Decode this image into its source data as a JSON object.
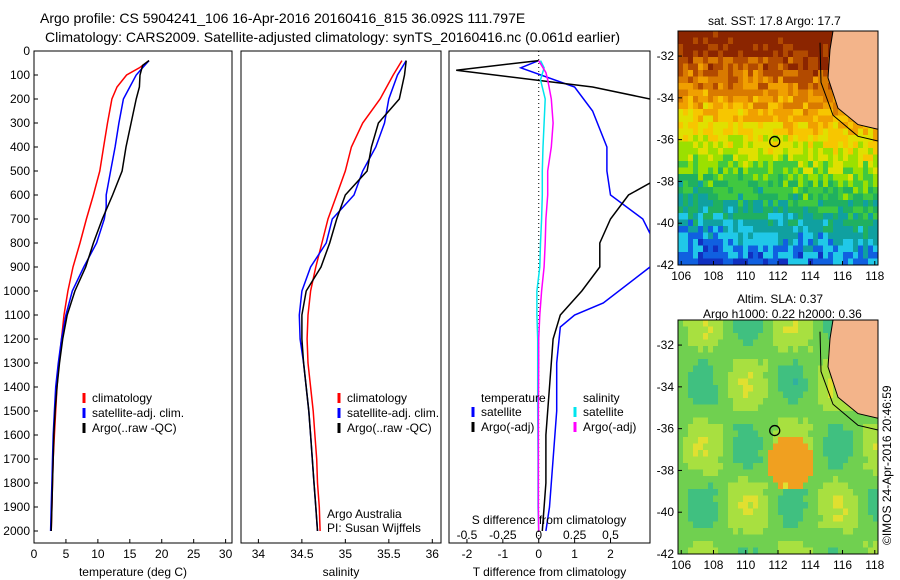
{
  "header": {
    "title_line1": "Argo profile: CS 5904241_106 16-Apr-2016 20160416_815 36.092S 111.797E",
    "title_line2": "Climatology: CARS2009. Satellite-adjusted climatology: synTS_20160416.nc (0.061d earlier)"
  },
  "colors": {
    "climatology": "#ff0000",
    "satellite": "#0000ff",
    "argo": "#000000",
    "satellite_salinity": "#00e5ee",
    "argo_salinity": "#ff00ff"
  },
  "chart_data": [
    {
      "type": "line",
      "id": "temperature",
      "xlabel": "temperature (deg C)",
      "ylabel": "",
      "xlim": [
        0,
        31
      ],
      "ylim": [
        2050,
        0
      ],
      "xticks": [
        "0",
        "5",
        "10",
        "15",
        "20",
        "25",
        "30"
      ],
      "yticks": [
        "0",
        "100",
        "200",
        "300",
        "400",
        "500",
        "600",
        "700",
        "800",
        "900",
        "1000",
        "1100",
        "1200",
        "1300",
        "1400",
        "1500",
        "1600",
        "1700",
        "1800",
        "1900",
        "2000"
      ],
      "legend": [
        "climatology",
        "satellite-adj. clim.",
        "Argo(..raw -QC)"
      ],
      "legend_position": "lower-center",
      "series": [
        {
          "name": "climatology",
          "color": "#ff0000",
          "points": [
            [
              18,
              40
            ],
            [
              16.5,
              70
            ],
            [
              14.5,
              100
            ],
            [
              13,
              150
            ],
            [
              12.2,
              200
            ],
            [
              11.5,
              300
            ],
            [
              10.9,
              400
            ],
            [
              10.3,
              500
            ],
            [
              9.3,
              600
            ],
            [
              8.2,
              700
            ],
            [
              7.2,
              800
            ],
            [
              6.1,
              900
            ],
            [
              5.3,
              1000
            ],
            [
              4.7,
              1100
            ],
            [
              4.3,
              1200
            ],
            [
              3.9,
              1300
            ],
            [
              3.6,
              1400
            ],
            [
              3.4,
              1500
            ],
            [
              3.2,
              1600
            ],
            [
              3.0,
              1700
            ],
            [
              2.9,
              1800
            ],
            [
              2.8,
              1900
            ],
            [
              2.7,
              2000
            ]
          ]
        },
        {
          "name": "satellite-adj. clim.",
          "color": "#0000ff",
          "points": [
            [
              18,
              40
            ],
            [
              17,
              70
            ],
            [
              16,
              100
            ],
            [
              15,
              150
            ],
            [
              14,
              200
            ],
            [
              13.3,
              300
            ],
            [
              12.7,
              400
            ],
            [
              12.0,
              500
            ],
            [
              11.3,
              600
            ],
            [
              11.3,
              650
            ],
            [
              11.0,
              700
            ],
            [
              9.8,
              800
            ],
            [
              7.8,
              900
            ],
            [
              6.0,
              1000
            ],
            [
              5.0,
              1100
            ],
            [
              4.3,
              1200
            ],
            [
              3.8,
              1300
            ],
            [
              3.4,
              1400
            ],
            [
              3.2,
              1500
            ],
            [
              3.0,
              1600
            ],
            [
              2.9,
              1700
            ],
            [
              2.8,
              1800
            ],
            [
              2.7,
              1900
            ],
            [
              2.6,
              2000
            ]
          ]
        },
        {
          "name": "Argo(..raw -QC)",
          "color": "#000000",
          "points": [
            [
              18,
              40
            ],
            [
              17,
              60
            ],
            [
              16.6,
              100
            ],
            [
              16.5,
              150
            ],
            [
              16.0,
              200
            ],
            [
              15.2,
              300
            ],
            [
              14.4,
              400
            ],
            [
              13.8,
              500
            ],
            [
              12.3,
              600
            ],
            [
              10.7,
              700
            ],
            [
              9.3,
              800
            ],
            [
              8.1,
              900
            ],
            [
              6.4,
              1000
            ],
            [
              5.2,
              1100
            ],
            [
              4.5,
              1200
            ],
            [
              4.0,
              1300
            ],
            [
              3.6,
              1400
            ],
            [
              3.3,
              1500
            ],
            [
              3.1,
              1600
            ],
            [
              3.0,
              1700
            ],
            [
              2.9,
              1800
            ],
            [
              2.8,
              1900
            ],
            [
              2.7,
              2000
            ]
          ]
        }
      ]
    },
    {
      "type": "line",
      "id": "salinity",
      "xlabel": "salinity",
      "ylabel": "",
      "xlim": [
        33.8,
        36.1
      ],
      "ylim": [
        2050,
        0
      ],
      "xticks": [
        "34",
        "34.5",
        "35",
        "35.5",
        "36"
      ],
      "legend": [
        "climatology",
        "satellite-adj. clim.",
        "Argo(..raw -QC)"
      ],
      "legend_position": "lower-right",
      "annotation": [
        "Argo Australia",
        "PI: Susan Wijffels"
      ],
      "series": [
        {
          "name": "climatology",
          "color": "#ff0000",
          "points": [
            [
              35.65,
              40
            ],
            [
              35.55,
              100
            ],
            [
              35.4,
              200
            ],
            [
              35.2,
              300
            ],
            [
              35.07,
              400
            ],
            [
              35.0,
              500
            ],
            [
              34.9,
              600
            ],
            [
              34.8,
              700
            ],
            [
              34.73,
              800
            ],
            [
              34.66,
              900
            ],
            [
              34.6,
              1000
            ],
            [
              34.57,
              1100
            ],
            [
              34.56,
              1200
            ],
            [
              34.57,
              1300
            ],
            [
              34.6,
              1400
            ],
            [
              34.63,
              1500
            ],
            [
              34.65,
              1600
            ],
            [
              34.67,
              1700
            ],
            [
              34.68,
              1800
            ],
            [
              34.7,
              1900
            ],
            [
              34.71,
              2000
            ]
          ]
        },
        {
          "name": "satellite-adj. clim.",
          "color": "#0000ff",
          "points": [
            [
              35.7,
              40
            ],
            [
              35.6,
              100
            ],
            [
              35.5,
              200
            ],
            [
              35.45,
              300
            ],
            [
              35.35,
              400
            ],
            [
              35.2,
              500
            ],
            [
              35.1,
              600
            ],
            [
              34.85,
              700
            ],
            [
              34.78,
              800
            ],
            [
              34.6,
              900
            ],
            [
              34.5,
              1000
            ],
            [
              34.47,
              1100
            ],
            [
              34.48,
              1200
            ],
            [
              34.52,
              1300
            ],
            [
              34.55,
              1400
            ],
            [
              34.58,
              1500
            ],
            [
              34.6,
              1600
            ],
            [
              34.62,
              1700
            ],
            [
              34.64,
              1800
            ],
            [
              34.66,
              1900
            ],
            [
              34.68,
              2000
            ]
          ]
        },
        {
          "name": "Argo(..raw -QC)",
          "color": "#000000",
          "points": [
            [
              35.7,
              40
            ],
            [
              35.68,
              100
            ],
            [
              35.62,
              200
            ],
            [
              35.38,
              300
            ],
            [
              35.3,
              400
            ],
            [
              35.25,
              500
            ],
            [
              35.0,
              600
            ],
            [
              34.9,
              700
            ],
            [
              34.82,
              800
            ],
            [
              34.72,
              900
            ],
            [
              34.55,
              1000
            ],
            [
              34.5,
              1100
            ],
            [
              34.5,
              1200
            ],
            [
              34.52,
              1300
            ],
            [
              34.55,
              1400
            ],
            [
              34.58,
              1500
            ],
            [
              34.6,
              1600
            ],
            [
              34.62,
              1700
            ],
            [
              34.64,
              1800
            ],
            [
              34.66,
              1900
            ],
            [
              34.68,
              2000
            ]
          ]
        }
      ]
    },
    {
      "type": "line",
      "id": "difference",
      "xlabel": "T difference from climatology",
      "xlabel_top": "S difference from climatology",
      "xlim": [
        -2.5,
        3.1
      ],
      "ylim": [
        2050,
        0
      ],
      "xticks": [
        "-2",
        "-1",
        "0",
        "1",
        "2"
      ],
      "xticks_s": [
        "-0.5",
        "-0.25",
        "0",
        "0.25",
        "0.5"
      ],
      "legend_temperature_header": "temperature",
      "legend_salinity_header": "salinity",
      "legend_temperature": [
        "satellite",
        "Argo(-adj)"
      ],
      "legend_salinity": [
        "satellite",
        "Argo(-adj)"
      ],
      "series": [
        {
          "name": "T satellite",
          "color": "#0000ff",
          "points": [
            [
              0.0,
              40
            ],
            [
              -0.5,
              70
            ],
            [
              1.0,
              150
            ],
            [
              1.5,
              250
            ],
            [
              1.9,
              400
            ],
            [
              1.9,
              500
            ],
            [
              2.0,
              600
            ],
            [
              2.9,
              700
            ],
            [
              3.1,
              760
            ]
          ]
        },
        {
          "name": "T Argo(-adj)",
          "color": "#000000",
          "points": [
            [
              0.0,
              40
            ],
            [
              -2.3,
              80
            ],
            [
              1.5,
              150
            ],
            [
              3.1,
              200
            ]
          ]
        },
        {
          "name": "T satellite lower",
          "color": "#0000ff",
          "points": [
            [
              3.1,
              900
            ],
            [
              1.8,
              1050
            ],
            [
              1.0,
              1100
            ],
            [
              0.6,
              1150
            ],
            [
              0.5,
              1300
            ],
            [
              0.5,
              1500
            ],
            [
              0.4,
              1700
            ],
            [
              0.3,
              1900
            ],
            [
              0.2,
              2000
            ]
          ]
        },
        {
          "name": "T Argo lower",
          "color": "#000000",
          "points": [
            [
              3.1,
              550
            ],
            [
              2.5,
              600
            ],
            [
              2.0,
              700
            ],
            [
              1.7,
              800
            ],
            [
              1.7,
              900
            ],
            [
              1.2,
              1000
            ],
            [
              0.6,
              1100
            ],
            [
              0.4,
              1200
            ],
            [
              0.3,
              1400
            ],
            [
              0.2,
              1600
            ],
            [
              0.2,
              1800
            ],
            [
              0.1,
              2000
            ]
          ]
        },
        {
          "name": "S satellite",
          "color": "#00e5ee",
          "points": [
            [
              0.05,
              40
            ],
            [
              0.15,
              70
            ],
            [
              0.05,
              120
            ],
            [
              0.18,
              200
            ],
            [
              0.15,
              300
            ],
            [
              0.12,
              400
            ],
            [
              0.1,
              500
            ],
            [
              0.1,
              600
            ],
            [
              0.08,
              700
            ],
            [
              0.05,
              800
            ],
            [
              0.03,
              900
            ],
            [
              -0.05,
              1000
            ],
            [
              -0.05,
              1100
            ],
            [
              -0.03,
              1200
            ],
            [
              -0.03,
              1300
            ],
            [
              -0.03,
              1500
            ],
            [
              -0.02,
              1700
            ],
            [
              -0.02,
              1900
            ],
            [
              0.0,
              2000
            ]
          ]
        },
        {
          "name": "S Argo(-adj)",
          "color": "#ff00ff",
          "points": [
            [
              0.0,
              40
            ],
            [
              0.2,
              90
            ],
            [
              0.25,
              120
            ],
            [
              0.35,
              200
            ],
            [
              0.4,
              300
            ],
            [
              0.35,
              400
            ],
            [
              0.25,
              500
            ],
            [
              0.25,
              600
            ],
            [
              0.2,
              700
            ],
            [
              0.18,
              800
            ],
            [
              0.15,
              900
            ],
            [
              0.08,
              1000
            ],
            [
              0.03,
              1100
            ],
            [
              0.0,
              1200
            ],
            [
              0.0,
              1300
            ],
            [
              -0.01,
              1500
            ],
            [
              -0.01,
              1700
            ],
            [
              -0.01,
              1900
            ],
            [
              0.0,
              2000
            ]
          ]
        }
      ]
    }
  ],
  "maps": {
    "sst": {
      "title": "sat. SST: 17.8 Argo: 17.7",
      "xticks": [
        "106",
        "108",
        "110",
        "112",
        "114",
        "116",
        "118"
      ],
      "yticks": [
        "-32",
        "-34",
        "-36",
        "-38",
        "-40",
        "-42"
      ]
    },
    "sla": {
      "title_line1": "Altim. SLA: 0.37",
      "title_line2": "Argo h1000: 0.22 h2000: 0.36",
      "xticks": [
        "106",
        "108",
        "110",
        "112",
        "114",
        "116",
        "118"
      ],
      "yticks": [
        "-32",
        "-34",
        "-36",
        "-38",
        "-40",
        "-42"
      ]
    }
  },
  "footer": {
    "imos": "©IMOS 24-Apr-2016 20:46:59"
  }
}
